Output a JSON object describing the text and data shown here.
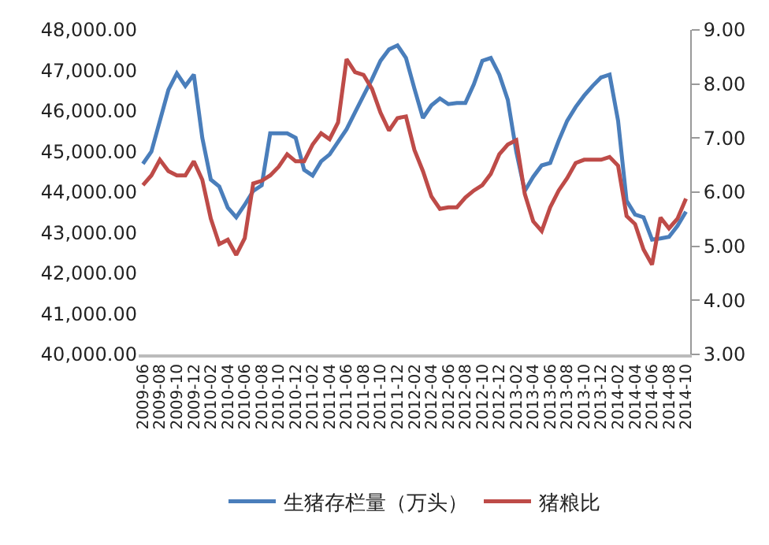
{
  "chart_data": {
    "type": "line",
    "categories": [
      "2009-06",
      null,
      "2009-08",
      null,
      "2009-10",
      null,
      "2009-12",
      null,
      "2010-02",
      null,
      "2010-04",
      null,
      "2010-06",
      null,
      "2010-08",
      null,
      "2010-10",
      null,
      "2010-12",
      null,
      "2011-02",
      null,
      "2011-04",
      null,
      "2011-06",
      null,
      "2011-08",
      null,
      "2011-10",
      null,
      "2011-12",
      null,
      "2012-02",
      null,
      "2012-04",
      null,
      "2012-06",
      null,
      "2012-08",
      null,
      "2012-10",
      null,
      "2012-12",
      null,
      "2013-02",
      null,
      "2013-04",
      null,
      "2013-06",
      null,
      "2013-08",
      null,
      "2013-10",
      null,
      "2013-12",
      null,
      "2014-02",
      null,
      "2014-04",
      null,
      "2014-06",
      null,
      "2014-08",
      null,
      "2014-10"
    ],
    "series": [
      {
        "name": "生猪存栏量（万头）",
        "color": "#4a7ebb",
        "values": [
          44700,
          45000,
          45760,
          46520,
          46930,
          46620,
          46900,
          45340,
          44310,
          44140,
          43620,
          43380,
          43690,
          44030,
          44170,
          45450,
          45450,
          45450,
          45340,
          44550,
          44410,
          44760,
          44930,
          45240,
          45550,
          45970,
          46380,
          46790,
          47240,
          47520,
          47620,
          47310,
          46550,
          45830,
          46140,
          46310,
          46170,
          46200,
          46200,
          46660,
          47240,
          47310,
          46900,
          46280,
          45000,
          44030,
          44380,
          44660,
          44720,
          45270,
          45760,
          46100,
          46380,
          46620,
          46830,
          46900,
          45760,
          43790,
          43450,
          43380,
          42830,
          42860,
          42900,
          43170,
          43520
        ]
      },
      {
        "name": "猪粮比",
        "color": "#be4b48",
        "axis": "y2",
        "values": [
          6.13,
          6.31,
          6.6,
          6.39,
          6.31,
          6.31,
          6.57,
          6.23,
          5.51,
          5.04,
          5.12,
          4.84,
          5.15,
          6.16,
          6.21,
          6.31,
          6.47,
          6.7,
          6.57,
          6.57,
          6.88,
          7.09,
          6.98,
          7.29,
          8.46,
          8.22,
          8.17,
          7.91,
          7.47,
          7.14,
          7.37,
          7.4,
          6.78,
          6.39,
          5.92,
          5.69,
          5.72,
          5.72,
          5.9,
          6.03,
          6.13,
          6.34,
          6.7,
          6.88,
          6.96,
          5.97,
          5.46,
          5.28,
          5.72,
          6.03,
          6.26,
          6.54,
          6.6,
          6.6,
          6.6,
          6.65,
          6.49,
          5.56,
          5.41,
          4.94,
          4.66,
          5.53,
          5.33,
          5.51,
          5.88
        ]
      }
    ],
    "ylim": [
      40000,
      48000
    ],
    "yticks": [
      {
        "value": 40000,
        "label": "40,000.00"
      },
      {
        "value": 41000,
        "label": "41,000.00"
      },
      {
        "value": 42000,
        "label": "42,000.00"
      },
      {
        "value": 43000,
        "label": "43,000.00"
      },
      {
        "value": 44000,
        "label": "44,000.00"
      },
      {
        "value": 45000,
        "label": "45,000.00"
      },
      {
        "value": 46000,
        "label": "46,000.00"
      },
      {
        "value": 47000,
        "label": "47,000.00"
      },
      {
        "value": 48000,
        "label": "48,000.00"
      }
    ],
    "y2lim": [
      3,
      9
    ],
    "y2ticks": [
      {
        "value": 3,
        "label": "3.00"
      },
      {
        "value": 4,
        "label": "4.00"
      },
      {
        "value": 5,
        "label": "5.00"
      },
      {
        "value": 6,
        "label": "6.00"
      },
      {
        "value": 7,
        "label": "7.00"
      },
      {
        "value": 8,
        "label": "8.00"
      },
      {
        "value": 9,
        "label": "9.00"
      }
    ],
    "legend": "bottom",
    "marker": "none",
    "line_style": "solid"
  }
}
